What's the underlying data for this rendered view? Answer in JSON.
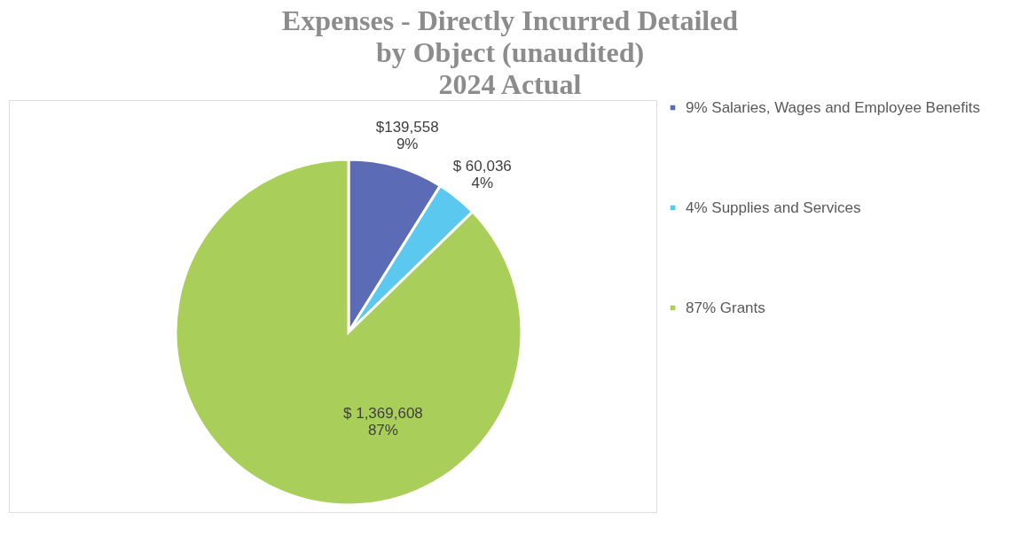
{
  "chart_data": {
    "type": "pie",
    "title": "Expenses - Directly Incurred Detailed\nby Object (unaudited)\n2024 Actual",
    "categories": [
      "9% Salaries, Wages and Employee Benefits",
      "4% Supplies and Services",
      "87% Grants"
    ],
    "values": [
      139558,
      60036,
      1369608
    ],
    "value_labels": [
      "$139,558\n9%",
      "$ 60,036\n4%",
      "$ 1,369,608\n87%"
    ],
    "colors": [
      "#5b6bb5",
      "#5bc8ef",
      "#a9cf5a"
    ],
    "legend": "right"
  }
}
